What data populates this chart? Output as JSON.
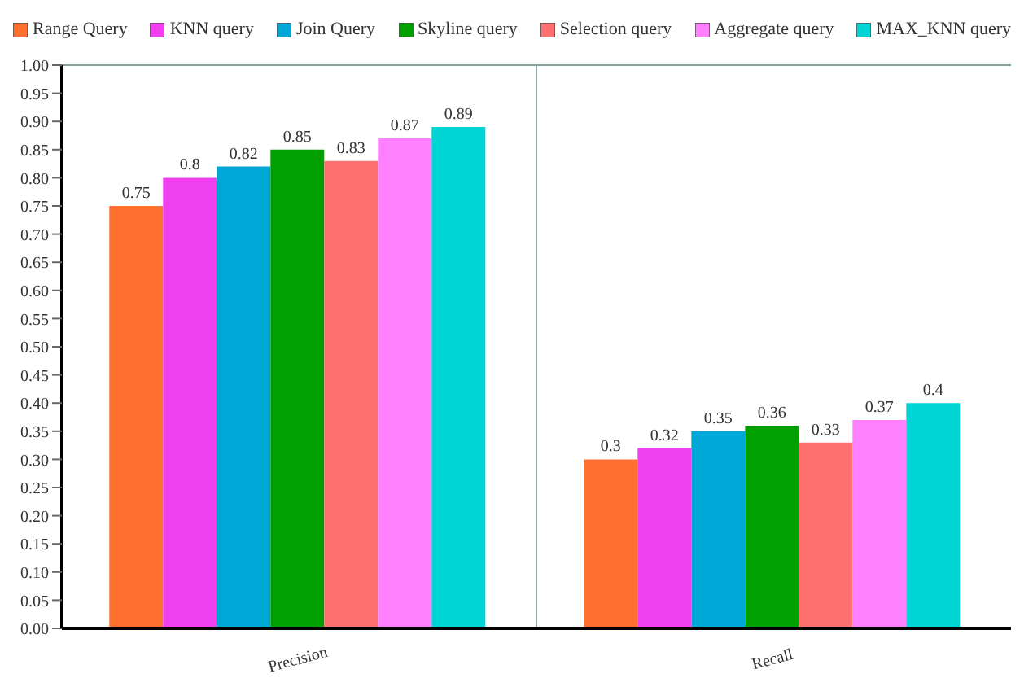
{
  "chart_data": {
    "type": "bar",
    "categories": [
      "Precision",
      "Recall"
    ],
    "series": [
      {
        "name": "Range Query",
        "color": "#ff7030",
        "values": [
          0.75,
          0.3
        ]
      },
      {
        "name": "KNN query",
        "color": "#f040f0",
        "values": [
          0.8,
          0.32
        ]
      },
      {
        "name": "Join Query",
        "color": "#00a8d8",
        "values": [
          0.82,
          0.35
        ]
      },
      {
        "name": "Skyline query",
        "color": "#00a000",
        "values": [
          0.85,
          0.36
        ]
      },
      {
        "name": "Selection query",
        "color": "#ff7070",
        "values": [
          0.83,
          0.33
        ]
      },
      {
        "name": "Aggregate query",
        "color": "#ff80ff",
        "values": [
          0.87,
          0.37
        ]
      },
      {
        "name": "MAX_KNN query",
        "color": "#00d4d4",
        "values": [
          0.89,
          0.4
        ]
      }
    ],
    "ylim": [
      0,
      1
    ],
    "yticks": [
      {
        "value": 0,
        "label": "0.00"
      },
      {
        "value": 0.05,
        "label": "0.05"
      },
      {
        "value": 0.1,
        "label": "0.10"
      },
      {
        "value": 0.15,
        "label": "0.15"
      },
      {
        "value": 0.2,
        "label": "0.20"
      },
      {
        "value": 0.25,
        "label": "0.25"
      },
      {
        "value": 0.3,
        "label": "0.30"
      },
      {
        "value": 0.35,
        "label": "0.35"
      },
      {
        "value": 0.4,
        "label": "0.40"
      },
      {
        "value": 0.45,
        "label": "0.45"
      },
      {
        "value": 0.5,
        "label": "0.50"
      },
      {
        "value": 0.55,
        "label": "0.55"
      },
      {
        "value": 0.6,
        "label": "0.60"
      },
      {
        "value": 0.65,
        "label": "0.65"
      },
      {
        "value": 0.7,
        "label": "0.70"
      },
      {
        "value": 0.75,
        "label": "0.75"
      },
      {
        "value": 0.8,
        "label": "0.80"
      },
      {
        "value": 0.85,
        "label": "0.85"
      },
      {
        "value": 0.9,
        "label": "0.90"
      },
      {
        "value": 0.95,
        "label": "0.95"
      },
      {
        "value": 1,
        "label": "1.00"
      }
    ],
    "grid": true,
    "legend": "top",
    "data_labels": true
  }
}
